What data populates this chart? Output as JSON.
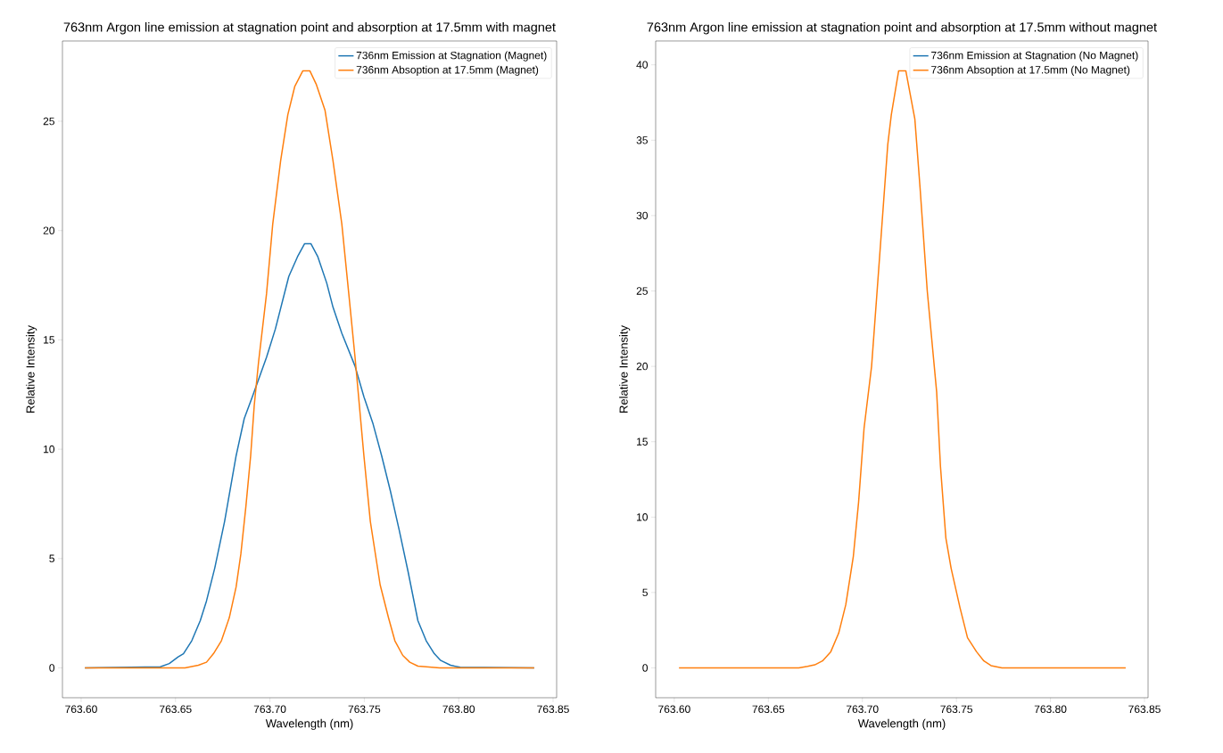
{
  "chart_data": [
    {
      "type": "line",
      "title": "763nm Argon line emission at stagnation point and absorption at 17.5mm with magnet",
      "xlabel": "Wavelength (nm)",
      "ylabel": "Relative Intensity",
      "legend": "top right",
      "xlim": [
        763.5901,
        763.8519
      ],
      "ylim": [
        -1.365,
        28.67
      ],
      "xticks": [
        {
          "value": 763.6,
          "label": "763.60"
        },
        763.65,
        {
          "value": 763.7,
          "label": "763.70"
        },
        763.75,
        {
          "value": 763.8,
          "label": "763.80"
        },
        763.85
      ],
      "yticks": [
        0,
        5,
        10,
        15,
        20,
        25
      ],
      "series": [
        {
          "name": "736nm Emission at Stagnation (Magnet)",
          "color": "#1f77b4",
          "x": [
            763.602,
            763.642,
            763.6467,
            763.6514,
            763.6542,
            763.6586,
            763.6631,
            763.6664,
            763.6708,
            763.676,
            763.6821,
            763.6864,
            763.6907,
            763.6982,
            763.7029,
            763.71,
            763.7146,
            763.7184,
            763.7217,
            763.7254,
            763.7301,
            763.7334,
            763.7381,
            763.7451,
            763.7498,
            763.7545,
            763.7592,
            763.7638,
            763.7685,
            763.7732,
            763.7784,
            763.7828,
            763.7871,
            763.7905,
            763.7957,
            763.8008,
            763.84
          ],
          "values": [
            0,
            0.05,
            0.2,
            0.5,
            0.65,
            1.24,
            2.16,
            3.06,
            4.57,
            6.7,
            9.7,
            11.4,
            12.4,
            14.2,
            15.5,
            17.9,
            18.8,
            19.4,
            19.4,
            18.8,
            17.6,
            16.5,
            15.3,
            13.8,
            12.4,
            11.2,
            9.7,
            8.1,
            6.3,
            4.4,
            2.16,
            1.24,
            0.65,
            0.34,
            0.12,
            0.03,
            0
          ]
        },
        {
          "name": "736nm Absoption at 17.5mm  (Magnet)",
          "color": "#ff7f0e",
          "x": [
            763.602,
            763.655,
            763.6621,
            763.6664,
            763.6701,
            763.6743,
            763.6785,
            763.6821,
            763.6846,
            763.6873,
            763.6898,
            763.6917,
            763.694,
            763.6982,
            763.7015,
            763.7057,
            763.7095,
            763.7132,
            763.7174,
            763.7212,
            763.7245,
            763.7292,
            763.7334,
            763.7381,
            763.7418,
            763.7451,
            763.7498,
            763.7532,
            763.7584,
            763.7628,
            763.7662,
            763.7704,
            763.7741,
            763.7784,
            763.79,
            763.84
          ],
          "values": [
            0,
            0,
            0.12,
            0.26,
            0.65,
            1.24,
            2.3,
            3.7,
            5.2,
            7.4,
            9.7,
            12.0,
            14.0,
            17.1,
            20.3,
            23.2,
            25.3,
            26.6,
            27.3,
            27.3,
            26.7,
            25.5,
            23.2,
            20.3,
            17.1,
            14.2,
            9.7,
            6.7,
            3.8,
            2.3,
            1.24,
            0.57,
            0.26,
            0.08,
            0,
            0
          ]
        }
      ]
    },
    {
      "type": "line",
      "title": "763nm Argon line emission at stagnation point and absorption at 17.5mm without magnet",
      "xlabel": "Wavelength (nm)",
      "ylabel": "Relative Intensity",
      "legend": "top right",
      "xlim": [
        763.5901,
        763.8519
      ],
      "ylim": [
        -1.98,
        41.58
      ],
      "xticks": [
        {
          "value": 763.6,
          "label": "763.60"
        },
        763.65,
        {
          "value": 763.7,
          "label": "763.70"
        },
        763.75,
        {
          "value": 763.8,
          "label": "763.80"
        },
        763.85
      ],
      "yticks": [
        0,
        5,
        10,
        15,
        20,
        25,
        30,
        35,
        40
      ],
      "series": [
        {
          "name": "736nm Emission at Stagnation (No Magnet)",
          "color": "#1f77b4"
        },
        {
          "name": "736nm Absoption at 17.5mm  (No Magnet)",
          "color": "#ff7f0e",
          "x": [
            763.6025,
            763.6662,
            763.6709,
            763.6747,
            763.6788,
            763.6832,
            763.6874,
            763.6912,
            763.6952,
            763.698,
            763.7009,
            763.7049,
            763.7086,
            763.7114,
            763.7135,
            763.7154,
            763.7193,
            763.7231,
            763.7279,
            763.7307,
            763.7345,
            763.7395,
            763.7415,
            763.7444,
            763.7472,
            763.7519,
            763.7559,
            763.7607,
            763.7646,
            763.7684,
            763.7742,
            763.84
          ],
          "values": [
            0,
            0,
            0.1,
            0.2,
            0.46,
            1.07,
            2.3,
            4.2,
            7.4,
            11.0,
            15.9,
            20.0,
            26.3,
            31.1,
            34.7,
            36.7,
            39.6,
            39.6,
            36.4,
            31.8,
            25.0,
            18.3,
            13.4,
            8.6,
            6.6,
            4.0,
            2.0,
            1.07,
            0.46,
            0.15,
            0,
            0
          ]
        }
      ]
    }
  ]
}
